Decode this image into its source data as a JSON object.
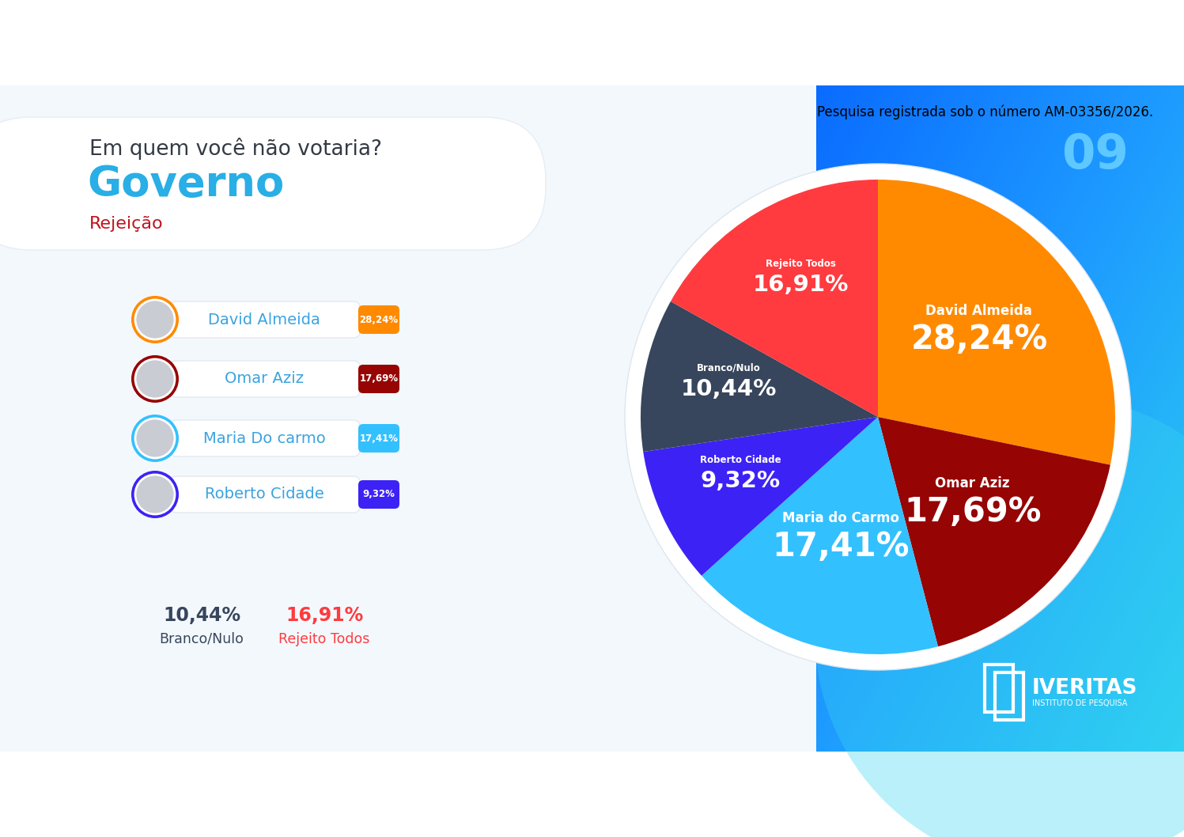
{
  "header": {
    "question": "Em quem você não votaria?",
    "title": "Governo",
    "subtitle": "Rejeição",
    "registration": "Pesquisa registrada sob o número AM-03356/2026.",
    "page": "09"
  },
  "chart_data": {
    "type": "pie",
    "categories": [
      "David Almeida",
      "Omar Aziz",
      "Maria do Carmo",
      "Roberto Cidade",
      "Branco/Nulo",
      "Rejeito Todos"
    ],
    "values": [
      28.24,
      17.69,
      17.41,
      9.32,
      10.44,
      16.91
    ],
    "value_labels": [
      "28,24%",
      "17,69%",
      "17,41%",
      "9,32%",
      "10,44%",
      "16,91%"
    ],
    "colors": [
      "#ff8a00",
      "#960404",
      "#33c0ff",
      "#3d22f5",
      "#37465c",
      "#ff3b3f"
    ],
    "data_labels": true
  },
  "ranking": [
    {
      "name": "David Almeida",
      "label": "28,24%",
      "color": "#ff8a00"
    },
    {
      "name": "Omar Aziz",
      "label": "17,69%",
      "color": "#960404"
    },
    {
      "name": "Maria Do carmo",
      "label": "17,41%",
      "color": "#33c0ff"
    },
    {
      "name": "Roberto Cidade",
      "label": "9,32%",
      "color": "#3d22f5"
    }
  ],
  "footer": [
    {
      "value_label": "10,44%",
      "label": "Branco/Nulo",
      "color": "#37465c"
    },
    {
      "value_label": "16,91%",
      "label": "Rejeito Todos",
      "color": "#ff3b3f"
    }
  ],
  "logo": {
    "name": "IVERITAS",
    "subtitle": "INSTITUTO DE PESQUISA"
  }
}
